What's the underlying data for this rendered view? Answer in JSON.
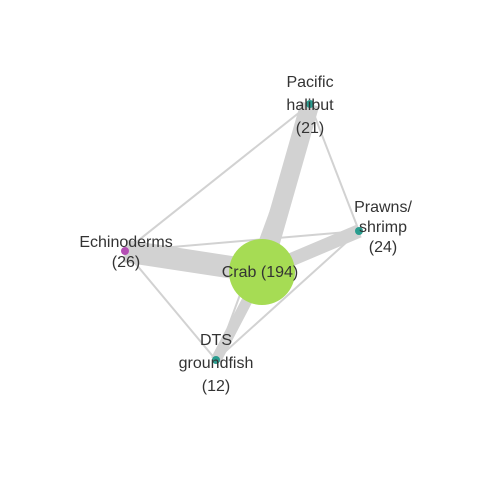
{
  "graph": {
    "nodes": [
      {
        "id": "crab",
        "name": "Crab",
        "count": 194,
        "color": "#a6dc54",
        "label_lines": [
          "Crab (194)"
        ]
      },
      {
        "id": "halibut",
        "name": "Pacific halibut",
        "count": 21,
        "color": "#2a9d8f",
        "label_lines": [
          "Pacific",
          "halibut",
          "(21)"
        ]
      },
      {
        "id": "prawns",
        "name": "Prawns/ shrimp",
        "count": 24,
        "color": "#2a9d8f",
        "label_lines": [
          "Prawns/",
          "shrimp",
          "(24)"
        ]
      },
      {
        "id": "echino",
        "name": "Echinoderms",
        "count": 26,
        "color": "#b44fb4",
        "label_lines": [
          "Echinoderms",
          "(26)"
        ]
      },
      {
        "id": "dts",
        "name": "DTS groundfish",
        "count": 12,
        "color": "#2a9d8f",
        "label_lines": [
          "DTS",
          "groundfish",
          "(12)"
        ]
      }
    ],
    "edges": [
      {
        "source": "crab",
        "target": "halibut",
        "weight": 21
      },
      {
        "source": "crab",
        "target": "prawns",
        "weight": 15
      },
      {
        "source": "crab",
        "target": "echino",
        "weight": 25
      },
      {
        "source": "crab",
        "target": "dts",
        "weight": 12
      },
      {
        "source": "halibut",
        "target": "prawns",
        "weight": 2
      },
      {
        "source": "halibut",
        "target": "echino",
        "weight": 2
      },
      {
        "source": "halibut",
        "target": "dts",
        "weight": 2
      },
      {
        "source": "echino",
        "target": "prawns",
        "weight": 2
      },
      {
        "source": "echino",
        "target": "dts",
        "weight": 2
      },
      {
        "source": "dts",
        "target": "prawns",
        "weight": 2
      }
    ]
  }
}
